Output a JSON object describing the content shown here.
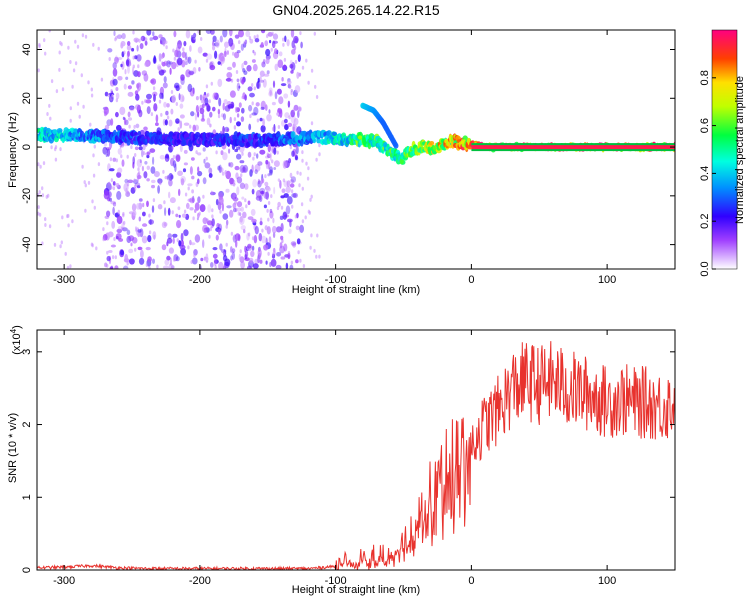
{
  "title": "GN04.2025.265.14.22.R15",
  "chart_data": [
    {
      "type": "heatmap",
      "xlabel": "Height of straight line (km)",
      "ylabel": "Frequency (Hz)",
      "xlim": [
        -320,
        150
      ],
      "ylim": [
        -50,
        48
      ],
      "xticks": [
        "-300",
        "-200",
        "-100",
        "0",
        "100"
      ],
      "yticks": [
        "-40",
        "-20",
        "0",
        "20",
        "40"
      ],
      "colorbar": {
        "label": "Normalized spectral amplitude",
        "range": [
          0.0,
          1.0
        ],
        "ticks": [
          "0.0",
          "0.2",
          "0.4",
          "0.6",
          "0.8"
        ]
      },
      "trend": {
        "x": [
          -320,
          -300,
          -250,
          -200,
          -150,
          -110,
          -90,
          -80,
          -70,
          -60,
          -52,
          -45,
          -35,
          -25,
          -15,
          -10,
          0,
          10,
          50,
          100,
          150
        ],
        "freq": [
          5,
          5,
          4,
          3,
          3,
          4,
          3,
          3,
          2,
          -2,
          -5,
          -1,
          0,
          0,
          3,
          2,
          1,
          0,
          0,
          0,
          0
        ],
        "amplitude": [
          0.5,
          0.45,
          0.3,
          0.25,
          0.3,
          0.45,
          0.55,
          0.65,
          0.6,
          0.6,
          0.55,
          0.7,
          0.75,
          0.8,
          0.85,
          0.85,
          0.9,
          0.95,
          0.95,
          0.95,
          0.95
        ]
      },
      "branch": {
        "x": [
          -80,
          -72,
          -65,
          -60,
          -55
        ],
        "freq": [
          17,
          15,
          10,
          5,
          0
        ],
        "amplitude": [
          0.4,
          0.35,
          0.3,
          0.3,
          0.3
        ]
      },
      "noise_region": {
        "x": [
          -270,
          -125
        ],
        "freq": [
          -50,
          48
        ],
        "amplitude": 0.15
      }
    },
    {
      "type": "line",
      "xlabel": "Height of straight line (km)",
      "ylabel": "SNR (10 * v/v)",
      "yscale_label": "(x10",
      "yscale_exponent": "4",
      "xlim": [
        -320,
        150
      ],
      "ylim": [
        0,
        3.3
      ],
      "xticks": [
        "-300",
        "-200",
        "-100",
        "0",
        "100"
      ],
      "yticks": [
        "0",
        "1",
        "2",
        "3"
      ],
      "color": "#e8322d",
      "series": [
        {
          "x": [
            -320,
            -300,
            -280,
            -260,
            -240,
            -220,
            -200,
            -180,
            -160,
            -140,
            -120,
            -100,
            -90,
            -80,
            -70,
            -60,
            -50,
            -40,
            -30,
            -20,
            -10,
            0,
            10,
            20,
            30,
            40,
            50,
            60,
            70,
            80,
            90,
            100,
            110,
            120,
            130,
            140,
            150
          ],
          "y": [
            0.03,
            0.04,
            0.06,
            0.03,
            0.02,
            0.02,
            0.02,
            0.02,
            0.02,
            0.02,
            0.02,
            0.05,
            0.12,
            0.15,
            0.18,
            0.2,
            0.35,
            0.7,
            1.0,
            1.3,
            1.5,
            1.75,
            2.0,
            2.2,
            2.5,
            2.6,
            2.55,
            2.6,
            2.5,
            2.45,
            2.4,
            2.3,
            2.35,
            2.3,
            2.3,
            2.25,
            2.3
          ]
        }
      ]
    }
  ]
}
